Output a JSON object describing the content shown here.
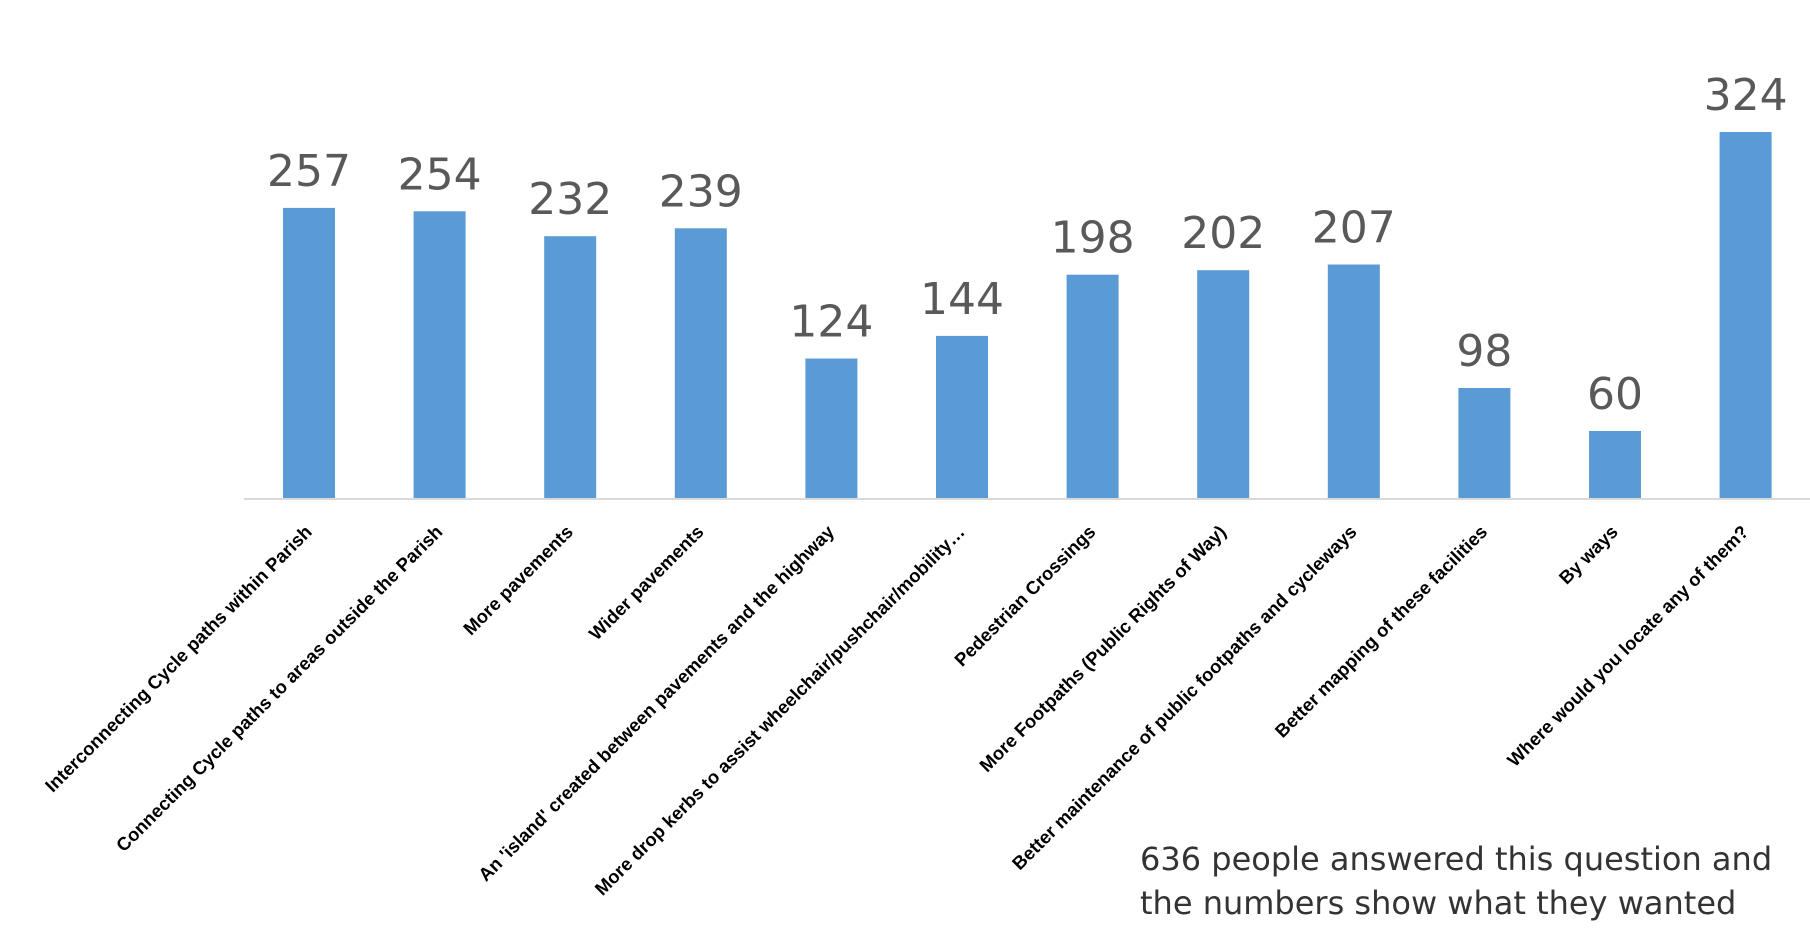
{
  "chart_data": {
    "type": "bar",
    "categories": [
      "Interconnecting Cycle paths within Parish",
      "Connecting Cycle paths to areas outside the Parish",
      "More pavements",
      "Wider pavements",
      "An 'island' created between pavements and the highway",
      "More drop kerbs to assist wheelchair/pushchair/mobility…",
      "Pedestrian Crossings",
      "More Footpaths (Public Rights of Way)",
      "Better maintenance of public footpaths and cycleways",
      "Better mapping of these facilities",
      "By ways",
      "Where would you locate any of them?"
    ],
    "values": [
      257,
      254,
      232,
      239,
      124,
      144,
      198,
      202,
      207,
      98,
      60,
      324
    ],
    "title": "",
    "xlabel": "",
    "ylabel": "",
    "ylim": [
      0,
      324
    ],
    "grid": false,
    "data_labels": true,
    "bar_color": "#5b9bd5",
    "label_color": "#595959",
    "axis_color": "#d9d9d9"
  },
  "annotation": {
    "lines": [
      "636 people answered this question and",
      "the numbers show what they wanted"
    ]
  }
}
